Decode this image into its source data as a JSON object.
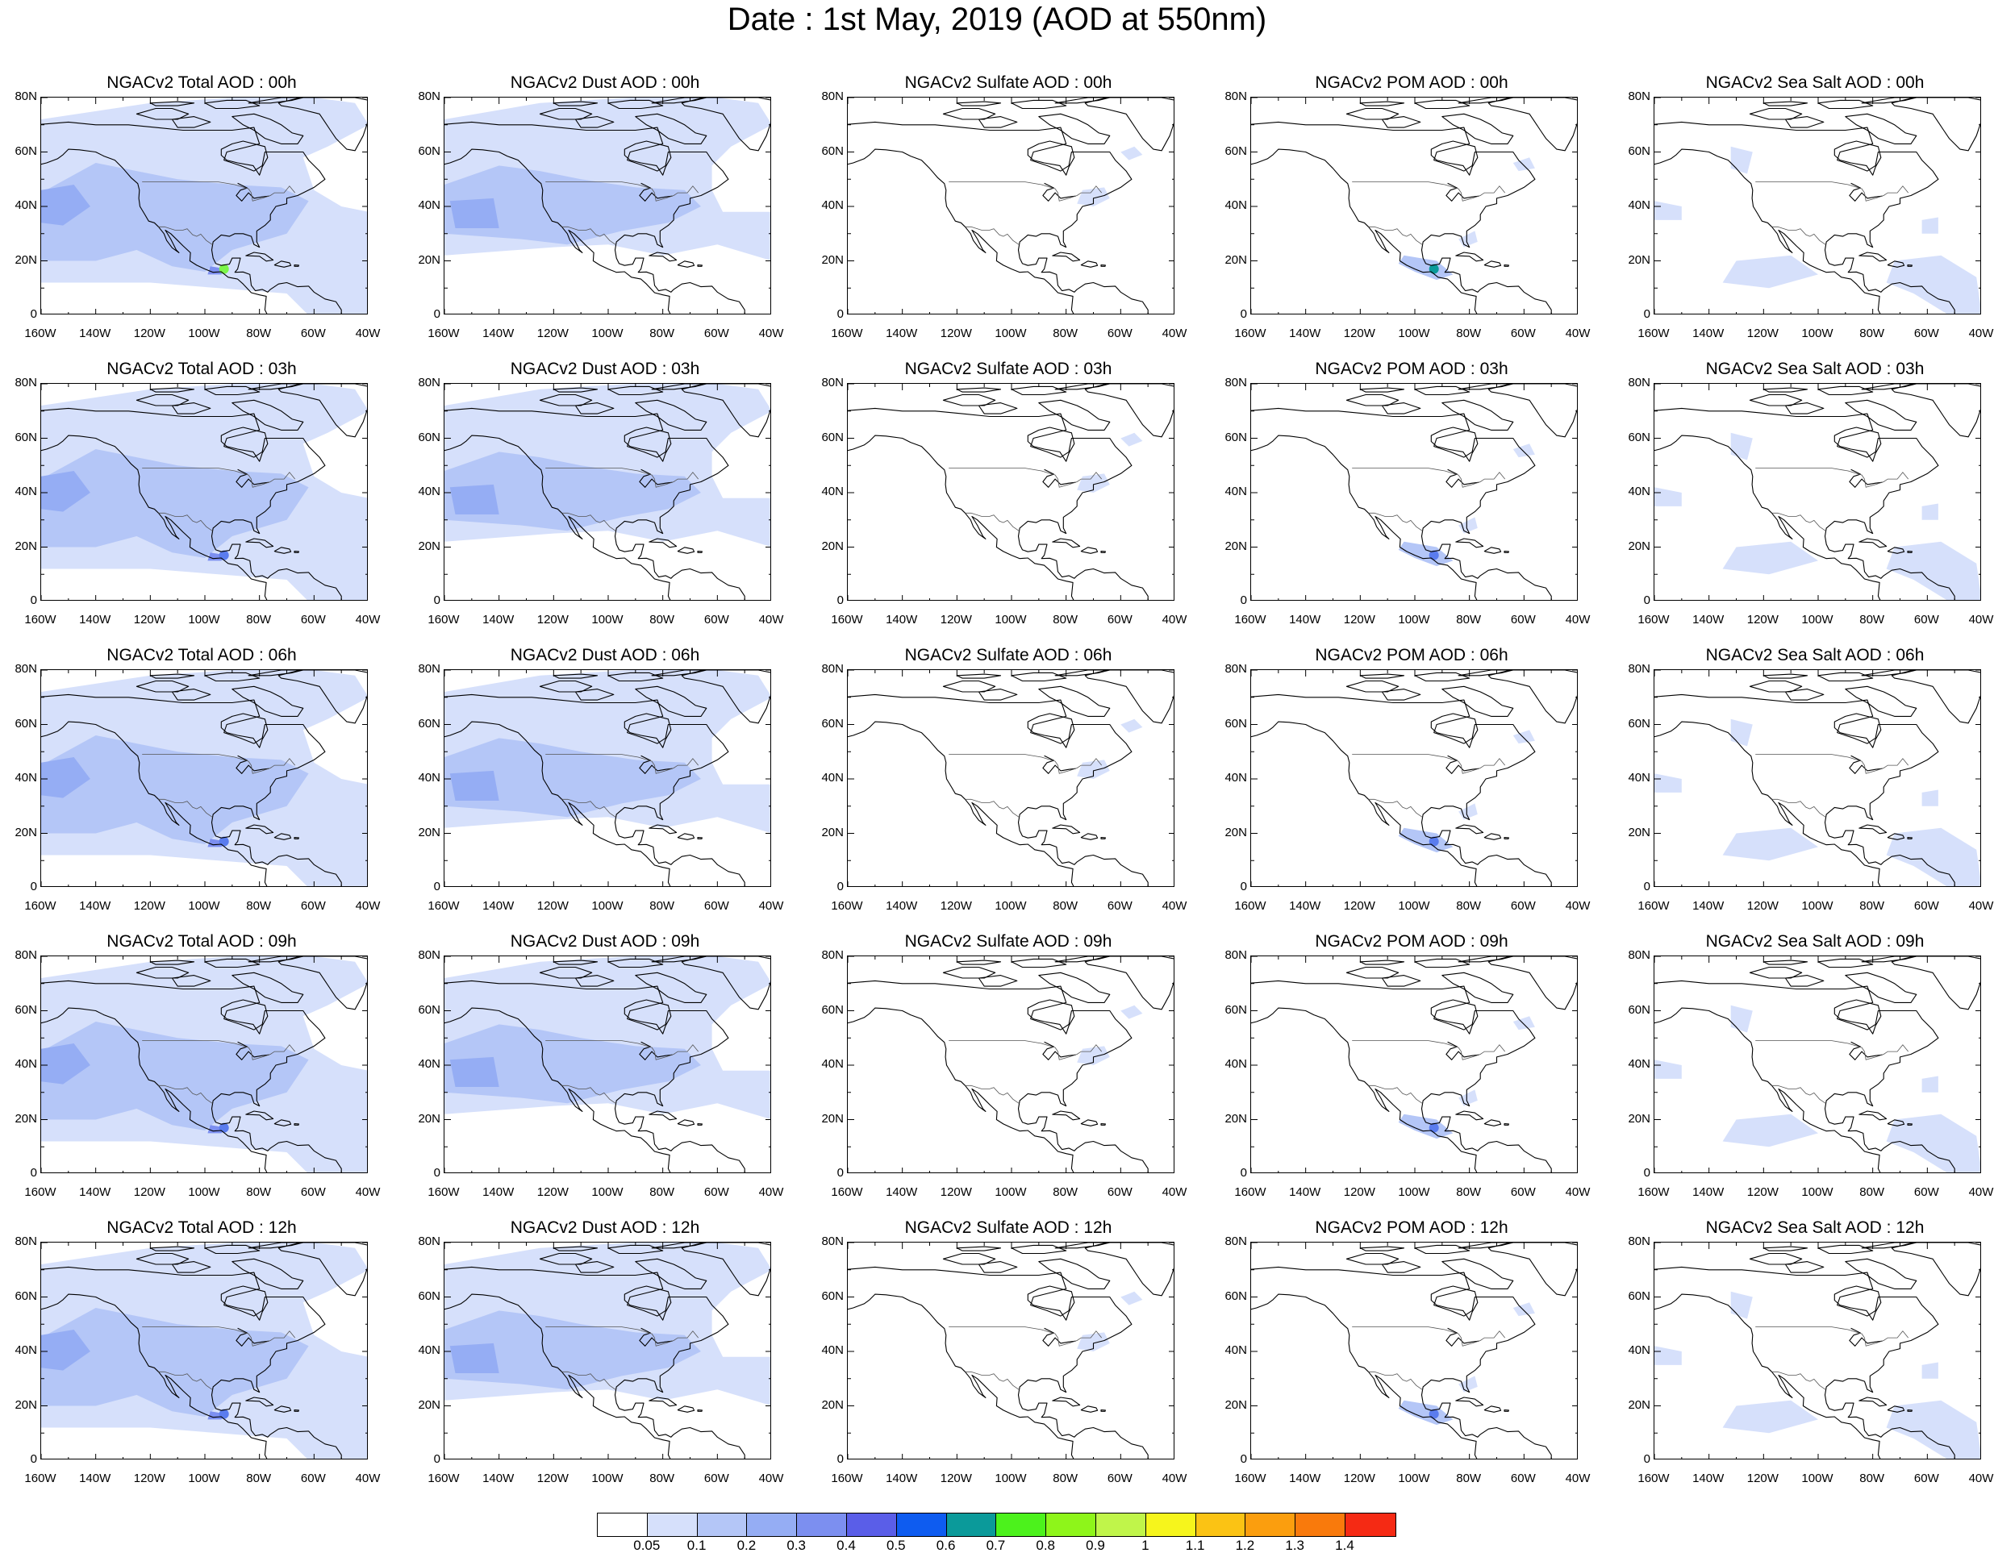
{
  "page": {
    "title": "Date : 1st May, 2019 (AOD at 550nm)"
  },
  "axes": {
    "lat_labels": [
      "80N",
      "60N",
      "40N",
      "20N",
      "0"
    ],
    "lon_labels": [
      "160W",
      "140W",
      "120W",
      "100W",
      "80W",
      "60W",
      "40W"
    ]
  },
  "panels": [
    {
      "title": "NGACv2 Total AOD : 00h",
      "species": "total",
      "level": 3,
      "hotspot": "green"
    },
    {
      "title": "NGACv2 Dust AOD : 00h",
      "species": "dust",
      "level": 2,
      "hotspot": "none"
    },
    {
      "title": "NGACv2 Sulfate AOD : 00h",
      "species": "sulfate",
      "level": 1,
      "hotspot": "none"
    },
    {
      "title": "NGACv2 POM AOD : 00h",
      "species": "pom",
      "level": 2,
      "hotspot": "teal"
    },
    {
      "title": "NGACv2 Sea Salt AOD : 00h",
      "species": "seasalt",
      "level": 1,
      "hotspot": "none"
    },
    {
      "title": "NGACv2 Total AOD : 03h",
      "species": "total",
      "level": 3,
      "hotspot": "blue"
    },
    {
      "title": "NGACv2 Dust AOD : 03h",
      "species": "dust",
      "level": 2,
      "hotspot": "none"
    },
    {
      "title": "NGACv2 Sulfate AOD : 03h",
      "species": "sulfate",
      "level": 1,
      "hotspot": "none"
    },
    {
      "title": "NGACv2 POM AOD : 03h",
      "species": "pom",
      "level": 2,
      "hotspot": "blue"
    },
    {
      "title": "NGACv2 Sea Salt AOD : 03h",
      "species": "seasalt",
      "level": 1,
      "hotspot": "none"
    },
    {
      "title": "NGACv2 Total AOD : 06h",
      "species": "total",
      "level": 3,
      "hotspot": "blue"
    },
    {
      "title": "NGACv2 Dust AOD : 06h",
      "species": "dust",
      "level": 2,
      "hotspot": "none"
    },
    {
      "title": "NGACv2 Sulfate AOD : 06h",
      "species": "sulfate",
      "level": 1,
      "hotspot": "none"
    },
    {
      "title": "NGACv2 POM AOD : 06h",
      "species": "pom",
      "level": 2,
      "hotspot": "blue"
    },
    {
      "title": "NGACv2 Sea Salt AOD : 06h",
      "species": "seasalt",
      "level": 1,
      "hotspot": "none"
    },
    {
      "title": "NGACv2 Total AOD : 09h",
      "species": "total",
      "level": 3,
      "hotspot": "blue"
    },
    {
      "title": "NGACv2 Dust AOD : 09h",
      "species": "dust",
      "level": 2,
      "hotspot": "none"
    },
    {
      "title": "NGACv2 Sulfate AOD : 09h",
      "species": "sulfate",
      "level": 1,
      "hotspot": "none"
    },
    {
      "title": "NGACv2 POM AOD : 09h",
      "species": "pom",
      "level": 2,
      "hotspot": "blue"
    },
    {
      "title": "NGACv2 Sea Salt  AOD : 09h",
      "species": "seasalt",
      "level": 1,
      "hotspot": "none"
    },
    {
      "title": "NGACv2 Total AOD  : 12h",
      "species": "total",
      "level": 3,
      "hotspot": "blue"
    },
    {
      "title": "NGACv2 Dust AOD : 12h",
      "species": "dust",
      "level": 2,
      "hotspot": "none"
    },
    {
      "title": "NGACv2 Sulfate AOD : 12h",
      "species": "sulfate",
      "level": 1,
      "hotspot": "none"
    },
    {
      "title": "NGACv2 POM  AOD : 12h",
      "species": "pom",
      "level": 2,
      "hotspot": "blue"
    },
    {
      "title": "NGACv2 Sea Salt  AOD : 12h",
      "species": "seasalt",
      "level": 1,
      "hotspot": "none"
    }
  ],
  "colorbar": {
    "labels": [
      "0.05",
      "0.1",
      "0.2",
      "0.3",
      "0.4",
      "0.5",
      "0.6",
      "0.7",
      "0.8",
      "0.9",
      "1",
      "1.1",
      "1.2",
      "1.3",
      "1.4"
    ],
    "colors": [
      "#ffffff",
      "#d6e0fb",
      "#b4c6f7",
      "#95adf4",
      "#7c8ff0",
      "#5a5ee8",
      "#0e5cf0",
      "#0b9a9a",
      "#4cf21c",
      "#8ef51a",
      "#c0f54a",
      "#f6f51c",
      "#fbc314",
      "#fb9e0e",
      "#f97a0c",
      "#f52a14"
    ]
  }
}
